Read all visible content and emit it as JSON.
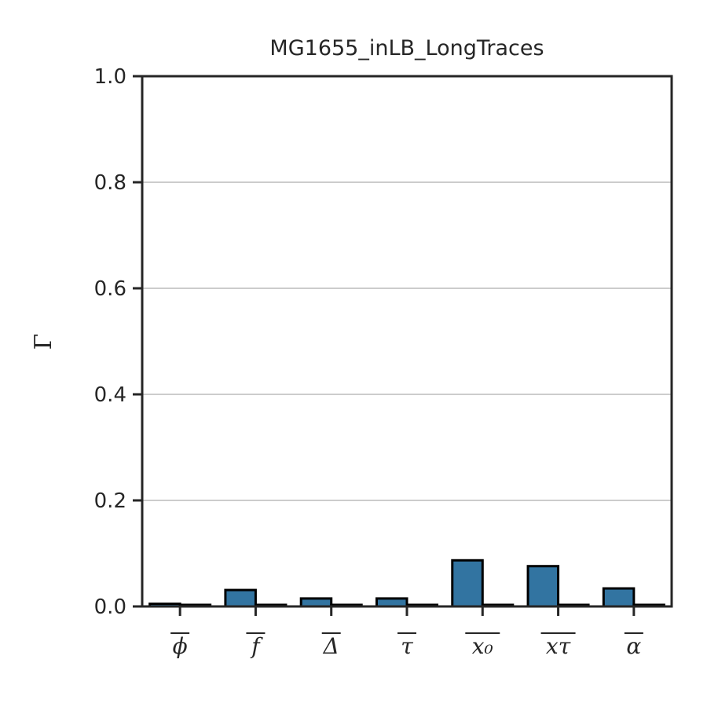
{
  "chart_data": {
    "type": "bar",
    "title": "MG1655_inLB_LongTraces",
    "xlabel": "",
    "ylabel": "Γ",
    "ylim": [
      0,
      1.0
    ],
    "yticks": [
      "0.0",
      "0.2",
      "0.4",
      "0.6",
      "0.8",
      "1.0"
    ],
    "grid": "horizontal",
    "categories": [
      "ϕ",
      "f",
      "Δ",
      "τ",
      "x₀",
      "xτ",
      "α"
    ],
    "series": [
      {
        "values": [
          0.005,
          0.031,
          0.015,
          0.015,
          0.087,
          0.076,
          0.034
        ],
        "color": "#3274a1"
      },
      {
        "values": [
          0.003,
          0.003,
          0.003,
          0.003,
          0.003,
          0.003,
          0.003
        ],
        "color": "#e1812c"
      }
    ]
  }
}
